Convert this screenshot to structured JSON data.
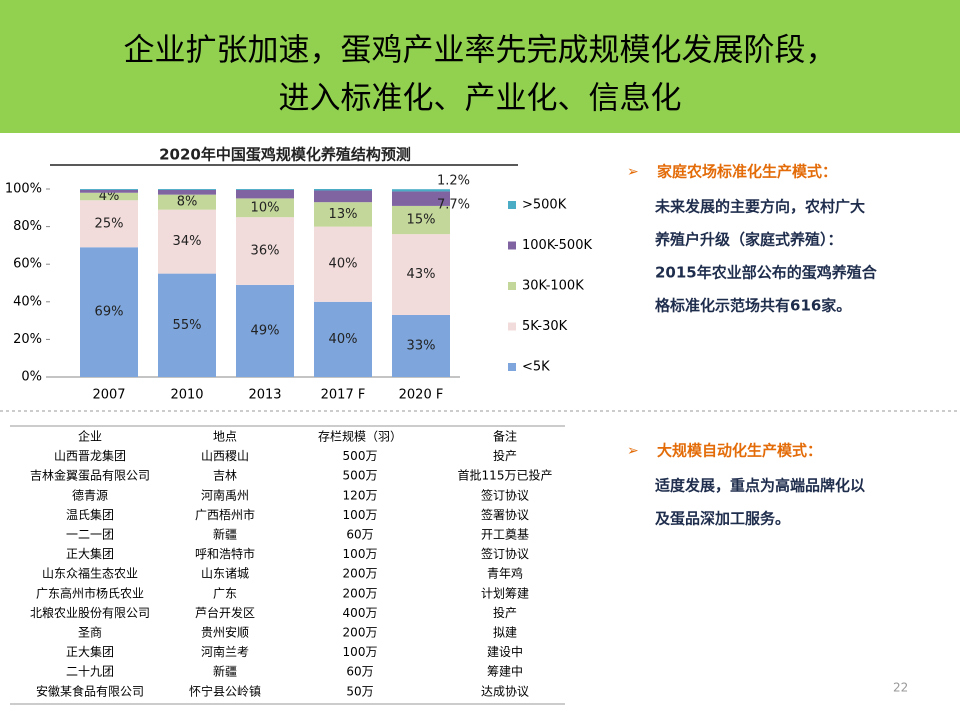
{
  "header": {
    "title": [
      "企业扩张加速，蛋鸡产业率先完成规模化发展阶段，",
      "进入标准化、产业化、信息化"
    ]
  },
  "chart_data": {
    "type": "stacked_bar",
    "title": "2020年中国蛋鸡规模化养殖结构预测",
    "categories": [
      "2007",
      "2010",
      "2013",
      "2017 F",
      "2020 F"
    ],
    "series": [
      {
        "name": "<5K",
        "color": "#7ea6dc",
        "values": [
          69,
          55,
          49,
          40,
          33
        ],
        "value_labels": [
          "69%",
          "55%",
          "49%",
          "40%",
          "33%"
        ]
      },
      {
        "name": "5K-30K",
        "color": "#f2dcdb",
        "values": [
          25,
          34,
          36,
          40,
          43
        ],
        "value_labels": [
          "25%",
          "34%",
          "36%",
          "40%",
          "43%"
        ]
      },
      {
        "name": "30K-100K",
        "color": "#c4d79b",
        "values": [
          4,
          8,
          10,
          13,
          15
        ],
        "value_labels": [
          "4%",
          "8%",
          "10%",
          "13%",
          "15%"
        ]
      },
      {
        "name": "100K-500K",
        "color": "#8064a2",
        "values": [
          1.5,
          2.5,
          4.5,
          6.2,
          7.7
        ],
        "value_labels": [
          null,
          null,
          null,
          null,
          "7.7%"
        ]
      },
      {
        "name": ">500K",
        "color": "#4bacc6",
        "values": [
          0.5,
          0.5,
          0.5,
          0.8,
          1.2
        ],
        "value_labels": [
          null,
          null,
          null,
          null,
          "1.2%"
        ]
      }
    ],
    "ylim": [
      0,
      100
    ],
    "yticks": [
      {
        "value": 0,
        "label": "0%"
      },
      {
        "value": 20,
        "label": "20%"
      },
      {
        "value": 40,
        "label": "40%"
      },
      {
        "value": 60,
        "label": "60%"
      },
      {
        "value": 80,
        "label": "80%"
      },
      {
        "value": 100,
        "label": "100%"
      }
    ],
    "grid": false,
    "legend": "right"
  },
  "table": {
    "header": [
      "企业",
      "地点",
      "存栏规模（羽）",
      "备注"
    ],
    "rows": [
      [
        "山西晋龙集团",
        "山西稷山",
        "500万",
        "投产"
      ],
      [
        "吉林金翼蛋品有限公司",
        "吉林",
        "500万",
        "首批115万已投产"
      ],
      [
        "德青源",
        "河南禹州",
        "120万",
        "签订协议"
      ],
      [
        "温氏集团",
        "广西梧州市",
        "100万",
        "签署协议"
      ],
      [
        "一二一团",
        "新疆",
        "60万",
        "开工奠基"
      ],
      [
        "正大集团",
        "呼和浩特市",
        "100万",
        "签订协议"
      ],
      [
        "山东众福生态农业",
        "山东诸城",
        "200万",
        "青年鸡"
      ],
      [
        "广东高州市杨氏农业",
        "广东",
        "200万",
        "计划筹建"
      ],
      [
        "北粮农业股份有限公司",
        "芦台开发区",
        "400万",
        "投产"
      ],
      [
        "圣商",
        "贵州安顺",
        "200万",
        "拟建"
      ],
      [
        "正大集团",
        "河南兰考",
        "100万",
        "建设中"
      ],
      [
        "二十九团",
        "新疆",
        "60万",
        "筹建中"
      ],
      [
        "安徽某食品有限公司",
        "怀宁县公岭镇",
        "50万",
        "达成协议"
      ]
    ]
  },
  "sections": [
    {
      "heading": "家庭农场标准化生产模式：",
      "lines": [
        "未来发展的主要方向，农村广大",
        "养殖户升级（家庭式养殖）：",
        "2015年农业部公布的蛋鸡养殖合",
        "格标准化示范场共有616家。"
      ]
    },
    {
      "heading": "大规模自动化生产模式：",
      "lines": [
        "适度发展，重点为高端品牌化以",
        "及蛋品深加工服务。"
      ]
    }
  ],
  "page_number": "22"
}
